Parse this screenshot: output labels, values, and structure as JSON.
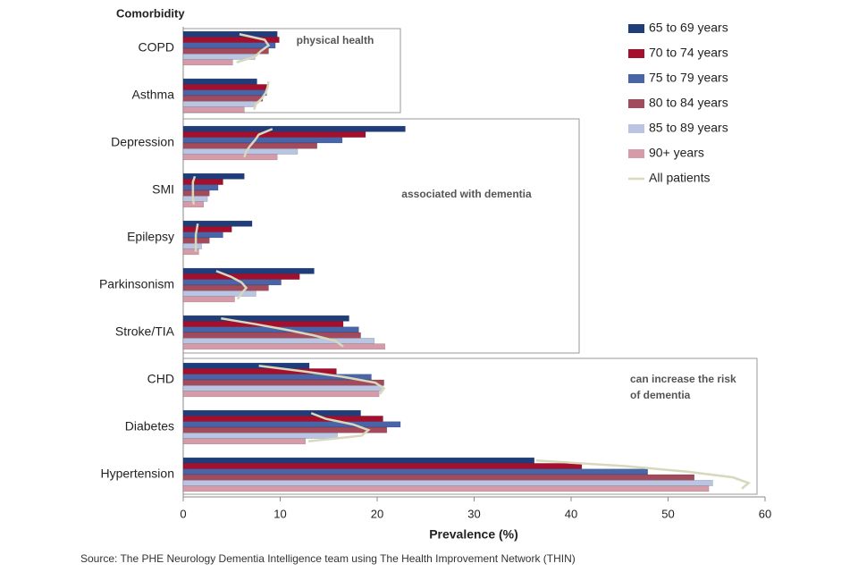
{
  "chart_data": {
    "type": "hbar",
    "y_axis_title": "Comorbidity",
    "x_axis_title": "Prevalence (%)",
    "source": "Source: The PHE Neurology Dementia Intelligence team using The Health Improvement Network (THIN)",
    "categories": [
      "COPD",
      "Asthma",
      "Depression",
      "SMI",
      "Epilepsy",
      "Parkinsonism",
      "Stroke/TIA",
      "CHD",
      "Diabetes",
      "Hypertension"
    ],
    "series": [
      {
        "name": "65 to 69 years",
        "color": "#1f3d7a",
        "values": [
          9.7,
          7.6,
          22.9,
          6.3,
          7.1,
          13.5,
          17.1,
          13.0,
          18.3,
          36.2
        ]
      },
      {
        "name": "70 to 74 years",
        "color": "#a50f2d",
        "values": [
          9.9,
          8.7,
          18.8,
          4.1,
          5.0,
          12.0,
          16.5,
          15.8,
          20.6,
          41.1
        ]
      },
      {
        "name": "75 to 79 years",
        "color": "#4a64a8",
        "values": [
          9.5,
          8.6,
          16.4,
          3.6,
          4.1,
          10.1,
          18.1,
          19.4,
          22.4,
          47.9
        ]
      },
      {
        "name": "80 to 84 years",
        "color": "#a34b5c",
        "values": [
          8.8,
          8.2,
          13.8,
          2.7,
          2.7,
          8.8,
          18.3,
          20.7,
          21.0,
          52.7
        ]
      },
      {
        "name": "85 to 89 years",
        "color": "#b9c5e2",
        "values": [
          7.4,
          7.5,
          11.8,
          2.5,
          1.9,
          7.5,
          19.7,
          20.6,
          15.9,
          54.6
        ]
      },
      {
        "name": "90+ years",
        "color": "#d59ba9",
        "values": [
          5.1,
          6.3,
          9.7,
          2.1,
          1.6,
          5.3,
          20.8,
          20.2,
          12.6,
          54.2
        ]
      }
    ],
    "line_series": {
      "name": "All patients",
      "color": "#d8d8bc",
      "values": [
        [
          5.8,
          8.4,
          8.8,
          8.0,
          7.4,
          5.5
        ],
        [
          8.8,
          8.7,
          8.5,
          8.1,
          7.5,
          7.3
        ],
        [
          9.2,
          7.8,
          7.4,
          6.9,
          6.5,
          6.3
        ],
        [
          1.2,
          1.0,
          1.0,
          1.0,
          1.0,
          1.1
        ],
        [
          1.5,
          1.4,
          1.3,
          1.3,
          1.3,
          1.3
        ],
        [
          3.4,
          4.9,
          6.0,
          6.5,
          6.0,
          5.6
        ],
        [
          3.9,
          7.4,
          10.6,
          13.4,
          15.7,
          16.5
        ],
        [
          7.8,
          12.4,
          16.6,
          19.8,
          20.7,
          20.3
        ],
        [
          13.2,
          14.7,
          17.5,
          19.1,
          18.4,
          12.9
        ],
        [
          36.4,
          45.6,
          52.1,
          56.7,
          58.3,
          57.6
        ]
      ]
    },
    "annotations": [
      [
        "physical health"
      ],
      [
        "associated with dementia"
      ],
      [
        "can increase the risk",
        "of dementia"
      ]
    ],
    "xlim": [
      0,
      60
    ],
    "xticks": [
      0,
      10,
      20,
      30,
      40,
      50,
      60
    ],
    "grid": false,
    "legend": "top-right"
  }
}
